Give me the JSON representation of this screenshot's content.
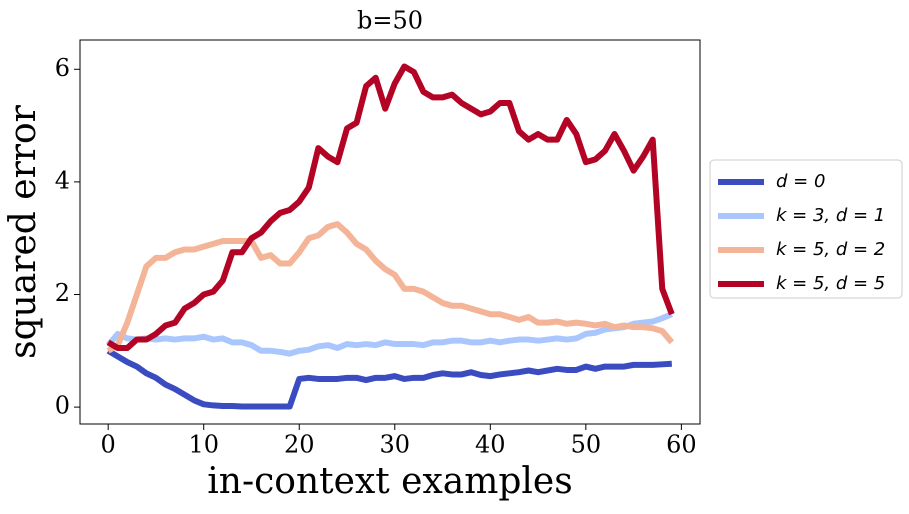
{
  "chart_data": {
    "type": "line",
    "title": "b=50",
    "xlabel": "in-context examples",
    "ylabel": "squared error",
    "x": [
      0,
      1,
      2,
      3,
      4,
      5,
      6,
      7,
      8,
      9,
      10,
      11,
      12,
      13,
      14,
      15,
      16,
      17,
      18,
      19,
      20,
      21,
      22,
      23,
      24,
      25,
      26,
      27,
      28,
      29,
      30,
      31,
      32,
      33,
      34,
      35,
      36,
      37,
      38,
      39,
      40,
      41,
      42,
      43,
      44,
      45,
      46,
      47,
      48,
      49,
      50,
      51,
      52,
      53,
      54,
      55,
      56,
      57,
      58,
      59
    ],
    "series": [
      {
        "name": "d = 0",
        "color": "#3b4cc0",
        "values": [
          1.0,
          0.9,
          0.8,
          0.72,
          0.6,
          0.52,
          0.4,
          0.32,
          0.22,
          0.12,
          0.05,
          0.03,
          0.02,
          0.02,
          0.01,
          0.01,
          0.01,
          0.01,
          0.01,
          0.01,
          0.5,
          0.52,
          0.5,
          0.5,
          0.5,
          0.52,
          0.52,
          0.48,
          0.52,
          0.52,
          0.55,
          0.5,
          0.52,
          0.52,
          0.57,
          0.6,
          0.58,
          0.58,
          0.62,
          0.57,
          0.55,
          0.58,
          0.6,
          0.62,
          0.65,
          0.62,
          0.65,
          0.68,
          0.66,
          0.66,
          0.72,
          0.68,
          0.72,
          0.72,
          0.72,
          0.75,
          0.75,
          0.75,
          0.76,
          0.77
        ]
      },
      {
        "name": "k = 3, d = 1",
        "color": "#aac7fd",
        "values": [
          1.1,
          1.3,
          1.22,
          1.2,
          1.22,
          1.2,
          1.22,
          1.2,
          1.22,
          1.22,
          1.25,
          1.2,
          1.22,
          1.15,
          1.15,
          1.1,
          1.0,
          1.0,
          0.98,
          0.95,
          1.0,
          1.02,
          1.08,
          1.1,
          1.05,
          1.12,
          1.1,
          1.12,
          1.1,
          1.15,
          1.12,
          1.12,
          1.12,
          1.1,
          1.15,
          1.15,
          1.18,
          1.18,
          1.15,
          1.15,
          1.18,
          1.15,
          1.18,
          1.2,
          1.2,
          1.18,
          1.2,
          1.22,
          1.2,
          1.22,
          1.3,
          1.32,
          1.38,
          1.4,
          1.42,
          1.48,
          1.5,
          1.52,
          1.58,
          1.65
        ]
      },
      {
        "name": "k = 5, d = 2",
        "color": "#f4b497",
        "values": [
          1.0,
          1.1,
          1.5,
          2.0,
          2.5,
          2.65,
          2.65,
          2.75,
          2.8,
          2.8,
          2.85,
          2.9,
          2.95,
          2.95,
          2.95,
          2.95,
          2.65,
          2.7,
          2.55,
          2.55,
          2.75,
          3.0,
          3.05,
          3.2,
          3.25,
          3.1,
          2.9,
          2.8,
          2.6,
          2.45,
          2.35,
          2.1,
          2.1,
          2.05,
          1.95,
          1.85,
          1.8,
          1.8,
          1.75,
          1.7,
          1.65,
          1.65,
          1.6,
          1.55,
          1.6,
          1.5,
          1.5,
          1.52,
          1.48,
          1.5,
          1.48,
          1.45,
          1.48,
          1.42,
          1.45,
          1.42,
          1.42,
          1.4,
          1.35,
          1.15
        ]
      },
      {
        "name": "k = 5, d = 5",
        "color": "#b40426",
        "values": [
          1.15,
          1.05,
          1.05,
          1.2,
          1.2,
          1.3,
          1.45,
          1.5,
          1.75,
          1.85,
          2.0,
          2.05,
          2.25,
          2.75,
          2.75,
          3.0,
          3.1,
          3.3,
          3.45,
          3.5,
          3.65,
          3.9,
          4.6,
          4.45,
          4.35,
          4.95,
          5.05,
          5.7,
          5.85,
          5.3,
          5.75,
          6.05,
          5.95,
          5.6,
          5.5,
          5.5,
          5.55,
          5.4,
          5.3,
          5.2,
          5.25,
          5.4,
          5.4,
          4.9,
          4.75,
          4.85,
          4.75,
          4.75,
          5.1,
          4.85,
          4.35,
          4.4,
          4.55,
          4.85,
          4.55,
          4.2,
          4.45,
          4.75,
          2.1,
          1.65
        ]
      }
    ],
    "xlim": [
      -2.95,
      61.95
    ],
    "ylim": [
      -0.3,
      6.52
    ],
    "xticks": [
      0,
      10,
      20,
      30,
      40,
      50,
      60
    ],
    "yticks": [
      0,
      2,
      4,
      6
    ],
    "legend": "right"
  }
}
